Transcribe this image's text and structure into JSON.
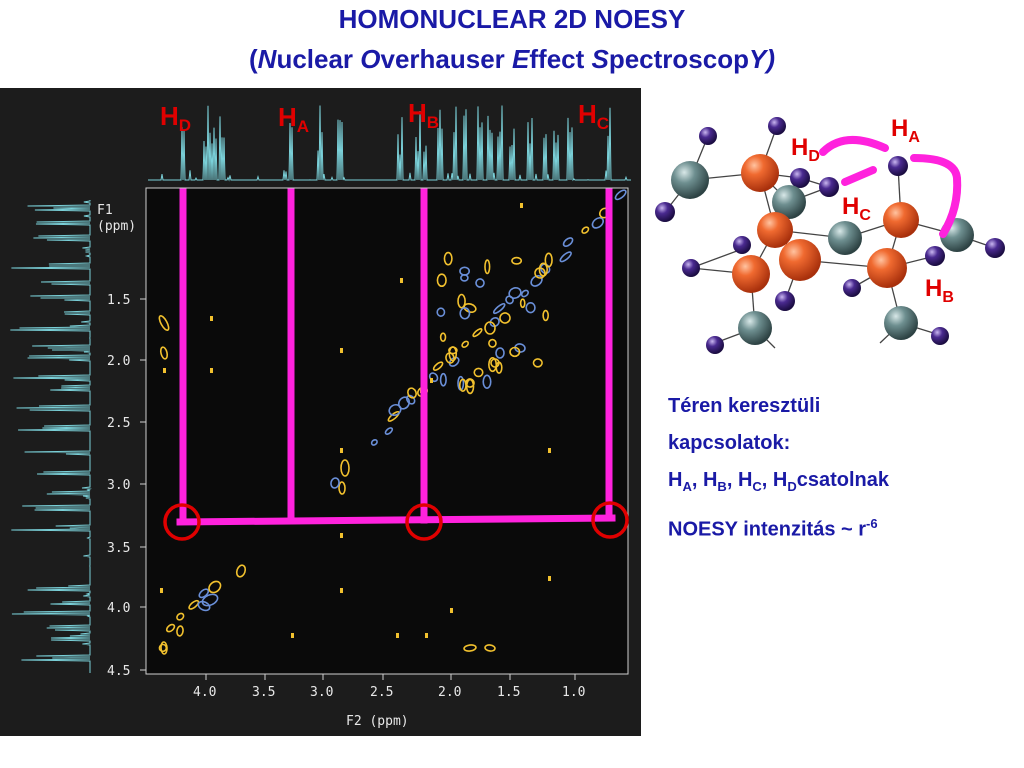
{
  "title": {
    "line1": "HOMONUCLEAR 2D NOESY",
    "open": "(",
    "n": "N",
    "n_rest": "uclear ",
    "o": "O",
    "o_rest": "verhauser ",
    "e": "E",
    "e_rest": "ffect ",
    "s": "S",
    "s_rest": "pectroscop",
    "y": "Y",
    "close": ")"
  },
  "spectrum": {
    "f1_label": "F1",
    "f1_unit": "(ppm)",
    "f2_label": "F2 (ppm)",
    "x_ticks": [
      "4.0",
      "3.5",
      "3.0",
      "2.5",
      "2.0",
      "1.5",
      "1.0"
    ],
    "y_ticks": [
      "1.5",
      "2.0",
      "2.5",
      "3.0",
      "3.5",
      "4.0",
      "4.5"
    ],
    "peak_labels": {
      "hd": {
        "main": "H",
        "sub": "D"
      },
      "ha": {
        "main": "H",
        "sub": "A"
      },
      "hb": {
        "main": "H",
        "sub": "B"
      },
      "hc": {
        "main": "H",
        "sub": "C"
      }
    },
    "colors": {
      "background": "#1c1c1c",
      "trace": "#7ad0d8",
      "highlight": "#ff22dd",
      "circle": "#e00000",
      "contour_pos": "#6a8fd8",
      "contour_neg": "#f2c12e"
    }
  },
  "molecule": {
    "labels": {
      "ha": {
        "main": "H",
        "sub": "A"
      },
      "hb": {
        "main": "H",
        "sub": "B"
      },
      "hc": {
        "main": "H",
        "sub": "C"
      },
      "hd": {
        "main": "H",
        "sub": "D"
      }
    },
    "colors": {
      "carbon_orange": "#ee5522",
      "carbon_grey": "#5f7f80",
      "hydrogen": "#3a1f73",
      "bond": "#444444",
      "highlight": "#ff22dd"
    }
  },
  "notes": {
    "line1": "Téren keresztüli",
    "line2": "kapcsolatok:",
    "line3_parts": [
      {
        "main": "H",
        "sub": "A"
      },
      {
        "sep": ", "
      },
      {
        "main": "H",
        "sub": "B"
      },
      {
        "sep": ", "
      },
      {
        "main": "H",
        "sub": "C"
      },
      {
        "sep": ", "
      },
      {
        "main": "H",
        "sub": "D"
      }
    ],
    "line3_tail": "csatolnak",
    "line4_text": "NOESY intenzitás ~ r",
    "line4_sup": "-6"
  }
}
